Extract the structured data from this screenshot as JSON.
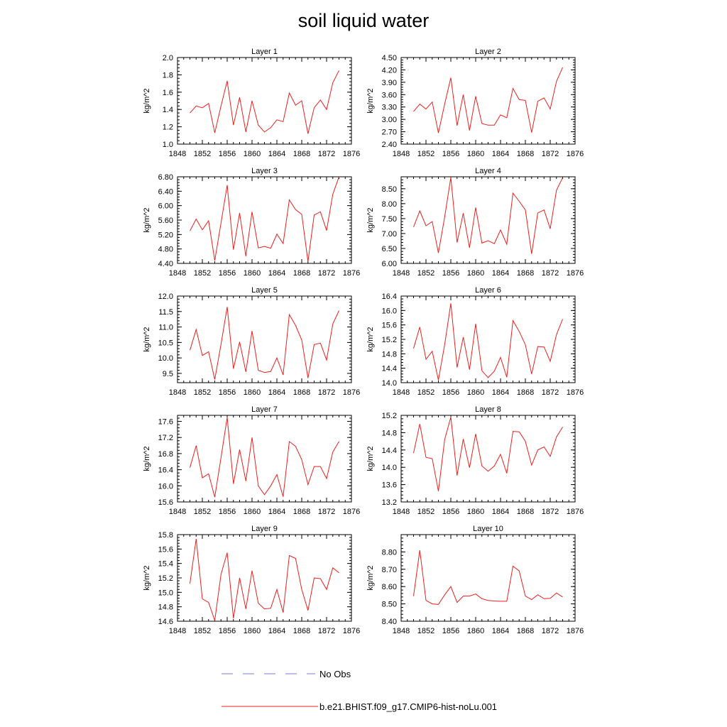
{
  "title": "soil liquid water",
  "colors": {
    "model_line": "#e8201e",
    "obs_line": "#7b7bd6",
    "axis": "#000000"
  },
  "legend": {
    "obs_label": "No Obs",
    "model_label": "b.e21.BHIST.f09_g17.CMIP6-hist-noLu.001"
  },
  "chart_data": [
    {
      "type": "line",
      "title": "Layer 1",
      "ylabel": "kg/m^2",
      "xlim": [
        1848,
        1876
      ],
      "ylim": [
        1.0,
        2.0
      ],
      "xticks": [
        1848,
        1852,
        1856,
        1860,
        1864,
        1868,
        1872,
        1876
      ],
      "yticks": [
        "1.0",
        "1.2",
        "1.4",
        "1.6",
        "1.8",
        "2.0"
      ],
      "x": [
        1850,
        1851,
        1852,
        1853,
        1854,
        1855,
        1856,
        1857,
        1858,
        1859,
        1860,
        1861,
        1862,
        1863,
        1864,
        1865,
        1866,
        1867,
        1868,
        1869,
        1870,
        1871,
        1872,
        1873,
        1874
      ],
      "series": [
        {
          "values": [
            1.36,
            1.44,
            1.42,
            1.47,
            1.13,
            1.44,
            1.73,
            1.22,
            1.54,
            1.14,
            1.5,
            1.22,
            1.14,
            1.19,
            1.28,
            1.26,
            1.59,
            1.45,
            1.5,
            1.12,
            1.42,
            1.51,
            1.4,
            1.71,
            1.85
          ]
        }
      ]
    },
    {
      "type": "line",
      "title": "Layer 2",
      "ylabel": "kg/m^2",
      "xlim": [
        1848,
        1876
      ],
      "ylim": [
        2.4,
        4.5
      ],
      "xticks": [
        1848,
        1852,
        1856,
        1860,
        1864,
        1868,
        1872,
        1876
      ],
      "yticks": [
        "2.40",
        "2.70",
        "3.00",
        "3.30",
        "3.60",
        "3.90",
        "4.20",
        "4.50"
      ],
      "x": [
        1850,
        1851,
        1852,
        1853,
        1854,
        1855,
        1856,
        1857,
        1858,
        1859,
        1860,
        1861,
        1862,
        1863,
        1864,
        1865,
        1866,
        1867,
        1868,
        1869,
        1870,
        1871,
        1872,
        1873,
        1874
      ],
      "series": [
        {
          "values": [
            3.19,
            3.37,
            3.25,
            3.42,
            2.67,
            3.37,
            4.01,
            2.85,
            3.6,
            2.73,
            3.56,
            2.9,
            2.86,
            2.86,
            3.11,
            3.04,
            3.75,
            3.48,
            3.46,
            2.68,
            3.44,
            3.52,
            3.25,
            3.92,
            4.26
          ]
        }
      ]
    },
    {
      "type": "line",
      "title": "Layer 3",
      "ylabel": "kg/m^2",
      "xlim": [
        1848,
        1876
      ],
      "ylim": [
        4.4,
        6.8
      ],
      "xticks": [
        1848,
        1852,
        1856,
        1860,
        1864,
        1868,
        1872,
        1876
      ],
      "yticks": [
        "4.40",
        "4.80",
        "5.20",
        "5.60",
        "6.00",
        "6.40",
        "6.80"
      ],
      "x": [
        1850,
        1851,
        1852,
        1853,
        1854,
        1855,
        1856,
        1857,
        1858,
        1859,
        1860,
        1861,
        1862,
        1863,
        1864,
        1865,
        1866,
        1867,
        1868,
        1869,
        1870,
        1871,
        1872,
        1873,
        1874
      ],
      "series": [
        {
          "values": [
            5.3,
            5.63,
            5.33,
            5.58,
            4.48,
            5.52,
            6.57,
            4.78,
            5.8,
            4.6,
            5.83,
            4.83,
            4.87,
            4.82,
            5.21,
            4.95,
            6.16,
            5.89,
            5.76,
            4.45,
            5.74,
            5.83,
            5.31,
            6.32,
            6.81
          ]
        }
      ]
    },
    {
      "type": "line",
      "title": "Layer 4",
      "ylabel": "kg/m^2",
      "xlim": [
        1848,
        1876
      ],
      "ylim": [
        6.0,
        8.9
      ],
      "xticks": [
        1848,
        1852,
        1856,
        1860,
        1864,
        1868,
        1872,
        1876
      ],
      "yticks": [
        "6.00",
        "6.50",
        "7.00",
        "7.50",
        "8.00",
        "8.50"
      ],
      "x": [
        1850,
        1851,
        1852,
        1853,
        1854,
        1855,
        1856,
        1857,
        1858,
        1859,
        1860,
        1861,
        1862,
        1863,
        1864,
        1865,
        1866,
        1867,
        1868,
        1869,
        1870,
        1871,
        1872,
        1873,
        1874
      ],
      "series": [
        {
          "values": [
            7.22,
            7.76,
            7.26,
            7.4,
            6.35,
            7.55,
            8.88,
            6.7,
            7.68,
            6.52,
            7.87,
            6.68,
            6.76,
            6.66,
            7.12,
            6.64,
            8.35,
            8.08,
            7.79,
            6.32,
            7.69,
            7.79,
            7.16,
            8.45,
            8.87
          ]
        }
      ]
    },
    {
      "type": "line",
      "title": "Layer 5",
      "ylabel": "kg/m^2",
      "xlim": [
        1848,
        1876
      ],
      "ylim": [
        9.2,
        12.0
      ],
      "xticks": [
        1848,
        1852,
        1856,
        1860,
        1864,
        1868,
        1872,
        1876
      ],
      "yticks": [
        "9.5",
        "10.0",
        "10.5",
        "11.0",
        "11.5",
        "12.0"
      ],
      "x": [
        1850,
        1851,
        1852,
        1853,
        1854,
        1855,
        1856,
        1857,
        1858,
        1859,
        1860,
        1861,
        1862,
        1863,
        1864,
        1865,
        1866,
        1867,
        1868,
        1869,
        1870,
        1871,
        1872,
        1873,
        1874
      ],
      "series": [
        {
          "values": [
            10.25,
            10.92,
            10.08,
            10.2,
            9.3,
            10.44,
            11.65,
            9.65,
            10.52,
            9.55,
            10.87,
            9.6,
            9.53,
            9.56,
            10.0,
            9.45,
            11.4,
            11.05,
            10.58,
            9.35,
            10.43,
            10.48,
            9.93,
            11.1,
            11.53
          ]
        }
      ]
    },
    {
      "type": "line",
      "title": "Layer 6",
      "ylabel": "kg/m^2",
      "xlim": [
        1848,
        1876
      ],
      "ylim": [
        14.0,
        16.4
      ],
      "xticks": [
        1848,
        1852,
        1856,
        1860,
        1864,
        1868,
        1872,
        1876
      ],
      "yticks": [
        "14.0",
        "14.4",
        "14.8",
        "15.2",
        "15.6",
        "16.0",
        "16.4"
      ],
      "x": [
        1850,
        1851,
        1852,
        1853,
        1854,
        1855,
        1856,
        1857,
        1858,
        1859,
        1860,
        1861,
        1862,
        1863,
        1864,
        1865,
        1866,
        1867,
        1868,
        1869,
        1870,
        1871,
        1872,
        1873,
        1874
      ],
      "series": [
        {
          "values": [
            14.95,
            15.54,
            14.65,
            14.87,
            14.07,
            15.05,
            16.2,
            14.42,
            15.26,
            14.36,
            15.63,
            14.33,
            14.14,
            14.32,
            14.7,
            14.15,
            15.72,
            15.42,
            15.05,
            14.24,
            15.0,
            14.99,
            14.59,
            15.33,
            15.76
          ]
        }
      ]
    },
    {
      "type": "line",
      "title": "Layer 7",
      "ylabel": "kg/m^2",
      "xlim": [
        1848,
        1876
      ],
      "ylim": [
        15.6,
        17.75
      ],
      "xticks": [
        1848,
        1852,
        1856,
        1860,
        1864,
        1868,
        1872,
        1876
      ],
      "yticks": [
        "15.6",
        "16.0",
        "16.4",
        "16.8",
        "17.2",
        "17.6"
      ],
      "x": [
        1850,
        1851,
        1852,
        1853,
        1854,
        1855,
        1856,
        1857,
        1858,
        1859,
        1860,
        1861,
        1862,
        1863,
        1864,
        1865,
        1866,
        1867,
        1868,
        1869,
        1870,
        1871,
        1872,
        1873,
        1874
      ],
      "series": [
        {
          "values": [
            16.45,
            17.0,
            16.2,
            16.3,
            15.72,
            16.7,
            17.7,
            16.05,
            16.9,
            16.12,
            17.2,
            16.0,
            15.78,
            16.0,
            16.28,
            15.73,
            17.1,
            16.98,
            16.65,
            16.03,
            16.48,
            16.48,
            16.18,
            16.84,
            17.1
          ]
        }
      ]
    },
    {
      "type": "line",
      "title": "Layer 8",
      "ylabel": "kg/m^2",
      "xlim": [
        1848,
        1876
      ],
      "ylim": [
        13.2,
        15.2
      ],
      "xticks": [
        1848,
        1852,
        1856,
        1860,
        1864,
        1868,
        1872,
        1876
      ],
      "yticks": [
        "13.2",
        "13.6",
        "14.0",
        "14.4",
        "14.8",
        "15.2"
      ],
      "x": [
        1850,
        1851,
        1852,
        1853,
        1854,
        1855,
        1856,
        1857,
        1858,
        1859,
        1860,
        1861,
        1862,
        1863,
        1864,
        1865,
        1866,
        1867,
        1868,
        1869,
        1870,
        1871,
        1872,
        1873,
        1874
      ],
      "series": [
        {
          "values": [
            14.33,
            15.0,
            14.23,
            14.2,
            13.45,
            14.64,
            15.16,
            13.81,
            14.65,
            13.99,
            14.77,
            14.03,
            13.91,
            14.03,
            14.3,
            13.86,
            14.83,
            14.82,
            14.6,
            14.05,
            14.4,
            14.47,
            14.25,
            14.7,
            14.93
          ]
        }
      ]
    },
    {
      "type": "line",
      "title": "Layer 9",
      "ylabel": "kg/m^2",
      "xlim": [
        1848,
        1876
      ],
      "ylim": [
        14.6,
        15.8
      ],
      "xticks": [
        1848,
        1852,
        1856,
        1860,
        1864,
        1868,
        1872,
        1876
      ],
      "yticks": [
        "14.6",
        "14.8",
        "15.0",
        "15.2",
        "15.4",
        "15.6",
        "15.8"
      ],
      "x": [
        1850,
        1851,
        1852,
        1853,
        1854,
        1855,
        1856,
        1857,
        1858,
        1859,
        1860,
        1861,
        1862,
        1863,
        1864,
        1865,
        1866,
        1867,
        1868,
        1869,
        1870,
        1871,
        1872,
        1873,
        1874
      ],
      "series": [
        {
          "values": [
            15.12,
            15.74,
            14.91,
            14.86,
            14.61,
            15.25,
            15.55,
            14.64,
            15.2,
            14.77,
            15.3,
            14.85,
            14.77,
            14.78,
            15.04,
            14.72,
            15.51,
            15.47,
            15.04,
            14.75,
            15.2,
            15.19,
            15.04,
            15.34,
            15.27
          ]
        }
      ]
    },
    {
      "type": "line",
      "title": "Layer 10",
      "ylabel": "kg/m^2",
      "xlim": [
        1848,
        1876
      ],
      "ylim": [
        8.4,
        8.9
      ],
      "xticks": [
        1848,
        1852,
        1856,
        1860,
        1864,
        1868,
        1872,
        1876
      ],
      "yticks": [
        "8.40",
        "8.50",
        "8.60",
        "8.70",
        "8.80"
      ],
      "x": [
        1850,
        1851,
        1852,
        1853,
        1854,
        1855,
        1856,
        1857,
        1858,
        1859,
        1860,
        1861,
        1862,
        1863,
        1864,
        1865,
        1866,
        1867,
        1868,
        1869,
        1870,
        1871,
        1872,
        1873,
        1874
      ],
      "series": [
        {
          "values": [
            8.545,
            8.81,
            8.52,
            8.5,
            8.497,
            8.552,
            8.6,
            8.508,
            8.545,
            8.545,
            8.557,
            8.53,
            8.52,
            8.517,
            8.515,
            8.515,
            8.718,
            8.69,
            8.545,
            8.525,
            8.553,
            8.53,
            8.532,
            8.563,
            8.54
          ]
        }
      ]
    }
  ]
}
